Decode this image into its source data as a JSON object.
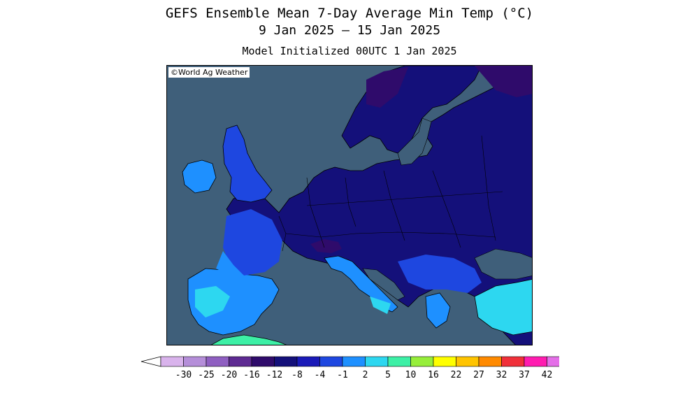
{
  "header": {
    "title": "GEFS Ensemble Mean 7-Day Average Min Temp (°C)",
    "date_range": "9 Jan 2025 – 15 Jan 2025",
    "model_init": "Model Initialized 00UTC 1 Jan 2025"
  },
  "map": {
    "copyright": "©World Ag Weather",
    "ocean_color": "#3f5f7a",
    "border_color": "#000000"
  },
  "colorbar": {
    "ticks": [
      "-30",
      "-25",
      "-20",
      "-16",
      "-12",
      "-8",
      "-4",
      "-1",
      "2",
      "5",
      "10",
      "16",
      "22",
      "27",
      "32",
      "37",
      "42"
    ],
    "colors": [
      "#d9b3ec",
      "#b58ed9",
      "#8f5fc1",
      "#5e2a92",
      "#2f0b6b",
      "#14107a",
      "#1a1ab8",
      "#1e47e0",
      "#1e90ff",
      "#2dd7f0",
      "#3df0a6",
      "#96ee3a",
      "#ffff00",
      "#ffc400",
      "#ff8a00",
      "#f0303a",
      "#ff1cb0",
      "#e46fe8"
    ],
    "under_color": "#ffffff",
    "over_color": "#e46fe8"
  }
}
